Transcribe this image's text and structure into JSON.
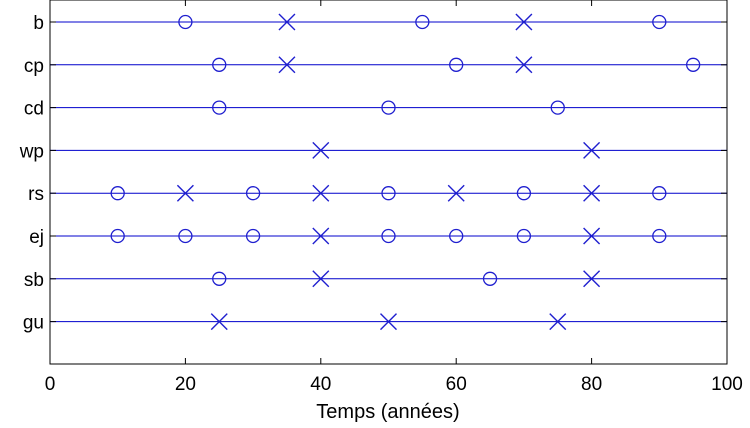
{
  "chart_data": {
    "type": "scatter",
    "title": "",
    "xlabel": "Temps (années)",
    "ylabel": "",
    "xlim": [
      0,
      100
    ],
    "xticks": [
      0,
      20,
      40,
      60,
      80,
      100
    ],
    "grid": false,
    "legend": "none",
    "line_color": "#0000cc",
    "marker_color": "#1f1fcf",
    "categories": [
      "b",
      "cp",
      "cd",
      "wp",
      "rs",
      "ej",
      "sb",
      "gu"
    ],
    "rows": [
      {
        "label": "b",
        "circles": [
          20,
          55,
          90
        ],
        "crosses": [
          35,
          70
        ]
      },
      {
        "label": "cp",
        "circles": [
          25,
          60,
          95
        ],
        "crosses": [
          35,
          70
        ]
      },
      {
        "label": "cd",
        "circles": [
          25,
          50,
          75
        ],
        "crosses": []
      },
      {
        "label": "wp",
        "circles": [],
        "crosses": [
          40,
          80
        ]
      },
      {
        "label": "rs",
        "circles": [
          10,
          30,
          50,
          70,
          90
        ],
        "crosses": [
          20,
          40,
          60,
          80
        ]
      },
      {
        "label": "ej",
        "circles": [
          10,
          20,
          30,
          50,
          60,
          70,
          90
        ],
        "crosses": [
          40,
          80
        ]
      },
      {
        "label": "sb",
        "circles": [
          25,
          65
        ],
        "crosses": [
          40,
          80
        ]
      },
      {
        "label": "gu",
        "circles": [],
        "crosses": [
          25,
          50,
          75
        ]
      }
    ]
  }
}
